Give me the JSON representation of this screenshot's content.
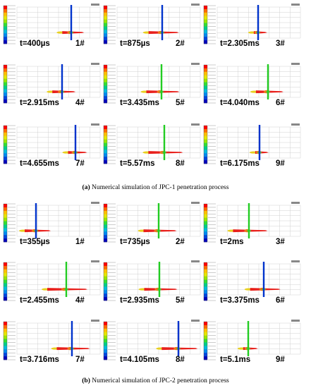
{
  "figures": [
    {
      "id": "a",
      "caption_label": "(a)",
      "caption_text": "Numerical simulation of JPC-1 penetration process",
      "panels": [
        {
          "time": "t=400µs",
          "number": "1#",
          "target_color": "#0033cc"
        },
        {
          "time": "t=875µs",
          "number": "2#",
          "target_color": "#0033cc"
        },
        {
          "time": "t=2.305ms",
          "number": "3#",
          "target_color": "#0033cc"
        },
        {
          "time": "t=2.915ms",
          "number": "4#",
          "target_color": "#0033cc"
        },
        {
          "time": "t=3.435ms",
          "number": "5#",
          "target_color": "#22cc22"
        },
        {
          "time": "t=4.040ms",
          "number": "6#",
          "target_color": "#22cc22"
        },
        {
          "time": "t=4.655ms",
          "number": "7#",
          "target_color": "#0033cc"
        },
        {
          "time": "t=5.57ms",
          "number": "8#",
          "target_color": "#22cc22"
        },
        {
          "time": "t=6.175ms",
          "number": "9#",
          "target_color": "#0033cc"
        }
      ]
    },
    {
      "id": "b",
      "caption_label": "(b)",
      "caption_text": "Numerical simulation of JPC-2 penetration process",
      "panels": [
        {
          "time": "t=355µs",
          "number": "1#",
          "target_color": "#0033cc"
        },
        {
          "time": "t=735µs",
          "number": "2#",
          "target_color": "#22cc22"
        },
        {
          "time": "t=2ms",
          "number": "3#",
          "target_color": "#22cc22"
        },
        {
          "time": "t=2.455ms",
          "number": "4#",
          "target_color": "#22cc22"
        },
        {
          "time": "t=2.935ms",
          "number": "5#",
          "target_color": "#22cc22"
        },
        {
          "time": "t=3.375ms",
          "number": "6#",
          "target_color": "#0033cc"
        },
        {
          "time": "t=3.716ms",
          "number": "7#",
          "target_color": "#0033cc"
        },
        {
          "time": "t=4.105ms",
          "number": "8#",
          "target_color": "#0033cc"
        },
        {
          "time": "t=5.1ms",
          "number": "9#",
          "target_color": "#22cc22"
        }
      ]
    }
  ],
  "colors": {
    "colorbar": [
      "#ff0000",
      "#ff6a00",
      "#ffbf00",
      "#e6e600",
      "#99e600",
      "#33dd33",
      "#00cc88",
      "#00bbdd",
      "#0088ee",
      "#0044dd",
      "#0000bb"
    ],
    "jet_red": "#e8201c",
    "jet_orange": "#f07818",
    "jet_yellow": "#e8d020",
    "jet_green": "#40d040",
    "grid": "#d0d0d0"
  }
}
